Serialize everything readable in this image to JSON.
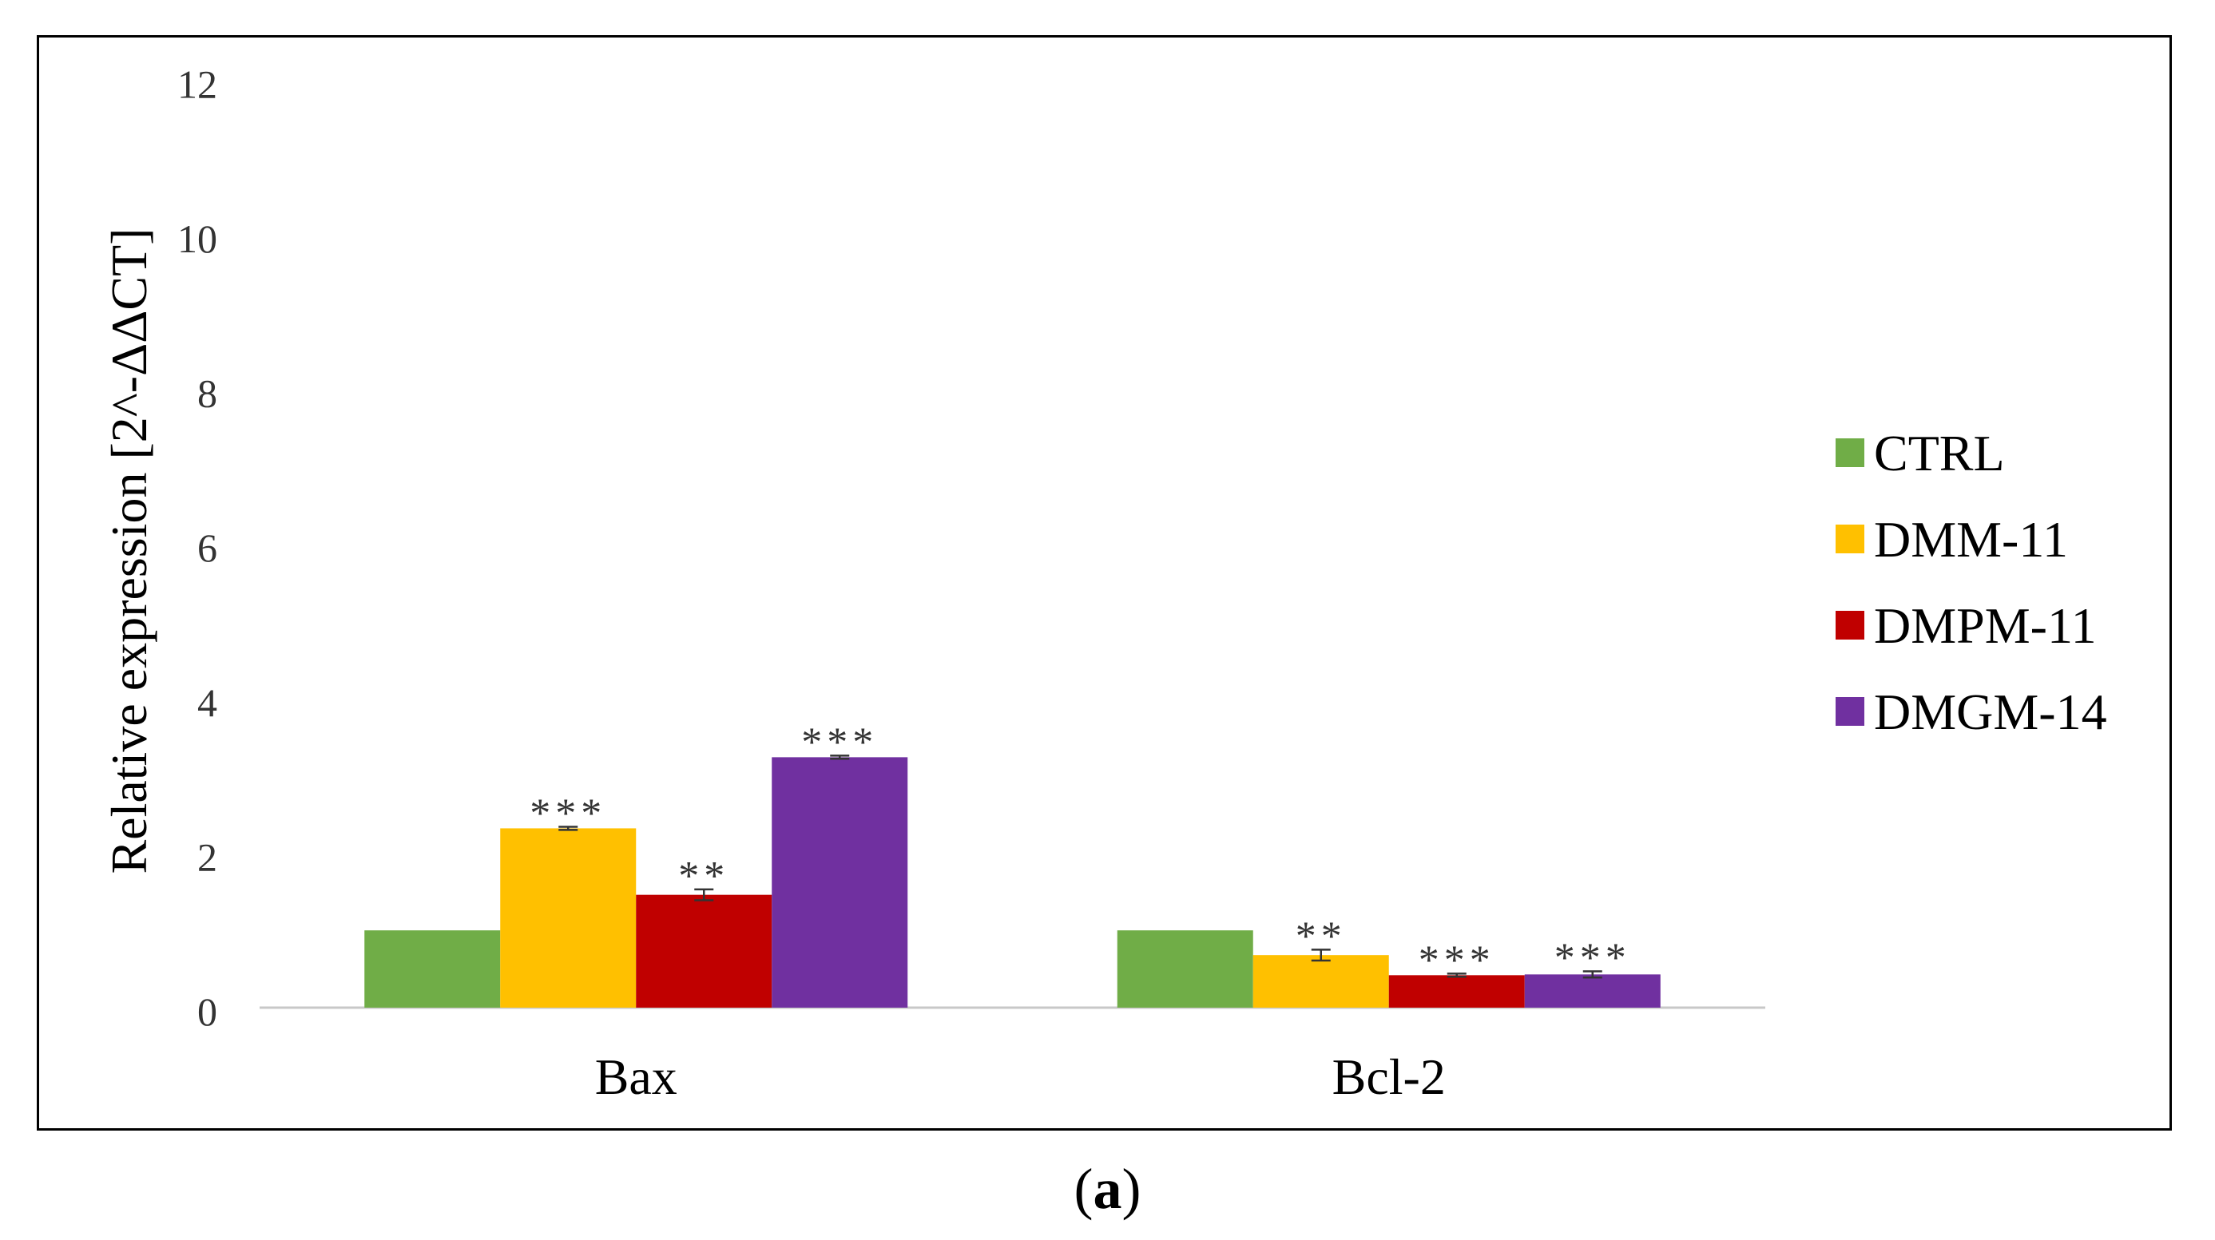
{
  "chart_data": {
    "type": "bar",
    "title": "",
    "xlabel": "",
    "ylabel": "Relative expression [2^-ΔΔCT]",
    "ylim": [
      0,
      12
    ],
    "yticks": [
      0,
      2,
      4,
      6,
      8,
      10,
      12
    ],
    "grid": false,
    "legend_position": "right",
    "categories": [
      "Bax",
      "Bcl-2"
    ],
    "series": [
      {
        "name": "CTRL",
        "color": "#70ad47",
        "values": [
          1.0,
          1.0
        ],
        "errors": [
          0.0,
          0.0
        ],
        "annotations": [
          "",
          ""
        ]
      },
      {
        "name": "DMM-11",
        "color": "#ffc000",
        "values": [
          2.32,
          0.68
        ],
        "errors": [
          0.02,
          0.07
        ],
        "annotations": [
          "***",
          "**"
        ]
      },
      {
        "name": "DMPM-11",
        "color": "#c00000",
        "values": [
          1.46,
          0.42
        ],
        "errors": [
          0.07,
          0.02
        ],
        "annotations": [
          "**",
          "***"
        ]
      },
      {
        "name": "DMGM-14",
        "color": "#7030a0",
        "values": [
          3.24,
          0.43
        ],
        "errors": [
          0.02,
          0.04
        ],
        "annotations": [
          "***",
          "***"
        ]
      }
    ]
  },
  "caption": {
    "open": "(",
    "letter": "a",
    "close": ")"
  }
}
